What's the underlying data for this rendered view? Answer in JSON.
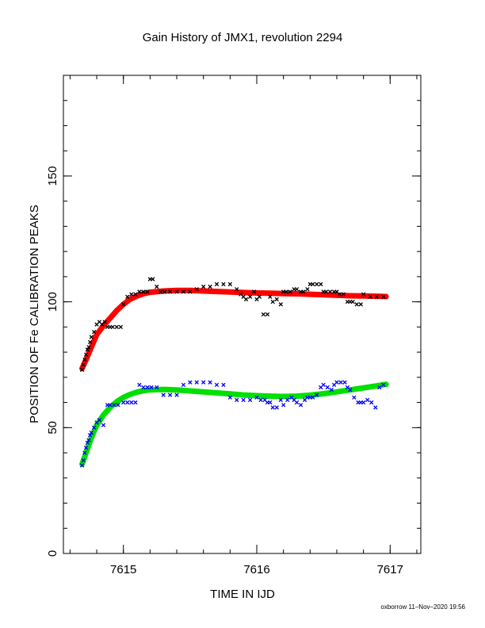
{
  "chart_data": {
    "type": "scatter",
    "title": "Gain History of JMX1, revolution 2294",
    "xlabel": "TIME IN IJD",
    "ylabel": "POSITION OF Fe CALIBRATION PEAKS",
    "footer": "oxborrow 11–Nov–2020 19:56",
    "xlim": [
      7614.55,
      7617.23
    ],
    "ylim": [
      0,
      190
    ],
    "x_ticks": [
      7615,
      7616,
      7617
    ],
    "y_ticks": [
      0,
      50,
      100,
      150
    ],
    "x_minor_step": 0.2,
    "y_minor_step": 10,
    "grid": false,
    "series": [
      {
        "kind": "points",
        "color": "#000000",
        "marker": "x",
        "x": [
          7614.69,
          7614.7,
          7614.71,
          7614.72,
          7614.73,
          7614.74,
          7614.75,
          7614.76,
          7614.78,
          7614.8,
          7614.82,
          7614.84,
          7614.86,
          7614.88,
          7614.9,
          7614.92,
          7614.95,
          7614.98,
          7615.0,
          7615.03,
          7615.06,
          7615.09,
          7615.12,
          7615.15,
          7615.18,
          7615.2,
          7615.22,
          7615.25,
          7615.28,
          7615.31,
          7615.35,
          7615.4,
          7615.45,
          7615.5,
          7615.55,
          7615.6,
          7615.65,
          7615.7,
          7615.75,
          7615.8,
          7615.85,
          7615.88,
          7615.9,
          7615.92,
          7615.95,
          7615.98,
          7616.0,
          7616.02,
          7616.05,
          7616.08,
          7616.1,
          7616.12,
          7616.15,
          7616.18,
          7616.2,
          7616.22,
          7616.25,
          7616.28,
          7616.3,
          7616.33,
          7616.35,
          7616.38,
          7616.4,
          7616.42,
          7616.45,
          7616.48,
          7616.5,
          7616.52,
          7616.55,
          7616.58,
          7616.6,
          7616.62,
          7616.65,
          7616.68,
          7616.7,
          7616.72,
          7616.75,
          7616.78,
          7616.8,
          7616.85,
          7616.9,
          7616.95
        ],
        "y": [
          73,
          75,
          77,
          79,
          81,
          82,
          84,
          86,
          88,
          91,
          92,
          91,
          92,
          90,
          90,
          90,
          90,
          90,
          99,
          102,
          103,
          103,
          104,
          104,
          104,
          109,
          109,
          106,
          104,
          104,
          104,
          104,
          104,
          104,
          105,
          106,
          106,
          107,
          107,
          107,
          105,
          103,
          102,
          101,
          102,
          104,
          101,
          102,
          95,
          95,
          102,
          100,
          101,
          99,
          104,
          104,
          104,
          105,
          105,
          104,
          104,
          105,
          107,
          107,
          107,
          107,
          104,
          104,
          104,
          104,
          104,
          103,
          103,
          100,
          100,
          100,
          99,
          99,
          103,
          102,
          102,
          102
        ]
      },
      {
        "kind": "points",
        "color": "#0000ff",
        "marker": "x",
        "x": [
          7614.69,
          7614.7,
          7614.71,
          7614.72,
          7614.73,
          7614.74,
          7614.75,
          7614.76,
          7614.78,
          7614.8,
          7614.82,
          7614.85,
          7614.88,
          7614.9,
          7614.93,
          7614.96,
          7615.0,
          7615.03,
          7615.06,
          7615.09,
          7615.12,
          7615.15,
          7615.18,
          7615.21,
          7615.25,
          7615.3,
          7615.35,
          7615.4,
          7615.45,
          7615.5,
          7615.55,
          7615.6,
          7615.65,
          7615.7,
          7615.75,
          7615.8,
          7615.85,
          7615.9,
          7615.95,
          7616.0,
          7616.03,
          7616.06,
          7616.08,
          7616.1,
          7616.12,
          7616.15,
          7616.18,
          7616.2,
          7616.23,
          7616.26,
          7616.28,
          7616.3,
          7616.33,
          7616.36,
          7616.38,
          7616.4,
          7616.42,
          7616.45,
          7616.48,
          7616.5,
          7616.53,
          7616.56,
          7616.58,
          7616.6,
          7616.63,
          7616.66,
          7616.68,
          7616.7,
          7616.73,
          7616.76,
          7616.78,
          7616.8,
          7616.83,
          7616.86,
          7616.89,
          7616.92,
          7616.95
        ],
        "y": [
          35,
          37,
          40,
          42,
          44,
          45,
          47,
          48,
          50,
          52,
          53,
          51,
          59,
          59,
          59,
          59,
          60,
          60,
          60,
          60,
          67,
          66,
          66,
          66,
          66,
          63,
          63,
          63,
          67,
          68,
          68,
          68,
          68,
          67,
          67,
          62,
          61,
          61,
          61,
          62,
          61,
          61,
          60,
          60,
          58,
          58,
          61,
          59,
          61,
          62,
          61,
          60,
          59,
          61,
          62,
          62,
          62,
          63,
          66,
          67,
          66,
          65,
          67,
          68,
          68,
          68,
          66,
          65,
          62,
          60,
          60,
          60,
          61,
          60,
          58,
          66,
          67
        ]
      },
      {
        "kind": "fit",
        "color": "#ff0000",
        "x": [
          7614.69,
          7614.72,
          7614.76,
          7614.8,
          7614.85,
          7614.9,
          7614.95,
          7615.0,
          7615.05,
          7615.1,
          7615.15,
          7615.2,
          7615.3,
          7615.4,
          7615.5,
          7615.6,
          7615.7,
          7615.8,
          7615.9,
          7616.0,
          7616.1,
          7616.2,
          7616.3,
          7616.4,
          7616.5,
          7616.6,
          7616.7,
          7616.8,
          7616.9,
          7616.97
        ],
        "y": [
          73.5,
          77,
          82,
          87,
          90.5,
          93.5,
          96.5,
          99,
          101,
          102.3,
          103.2,
          103.8,
          104.3,
          104.5,
          104.5,
          104.3,
          104.1,
          103.9,
          103.7,
          103.5,
          103.4,
          103.3,
          103.2,
          103.0,
          102.8,
          102.6,
          102.4,
          102.3,
          102.2,
          102.1
        ]
      },
      {
        "kind": "fit",
        "color": "#00e000",
        "x": [
          7614.69,
          7614.72,
          7614.76,
          7614.8,
          7614.85,
          7614.9,
          7614.95,
          7615.0,
          7615.05,
          7615.1,
          7615.15,
          7615.2,
          7615.3,
          7615.4,
          7615.5,
          7615.6,
          7615.7,
          7615.8,
          7615.9,
          7616.0,
          7616.1,
          7616.2,
          7616.3,
          7616.4,
          7616.5,
          7616.6,
          7616.7,
          7616.8,
          7616.9,
          7616.97
        ],
        "y": [
          35.5,
          40,
          46,
          51,
          55,
          58,
          60.3,
          62,
          63.2,
          64.1,
          64.7,
          65.0,
          65.2,
          65.0,
          64.6,
          64.2,
          63.8,
          63.4,
          63.0,
          62.7,
          62.5,
          62.4,
          62.5,
          62.9,
          63.5,
          64.2,
          65.0,
          65.8,
          66.6,
          67.2
        ]
      }
    ]
  }
}
